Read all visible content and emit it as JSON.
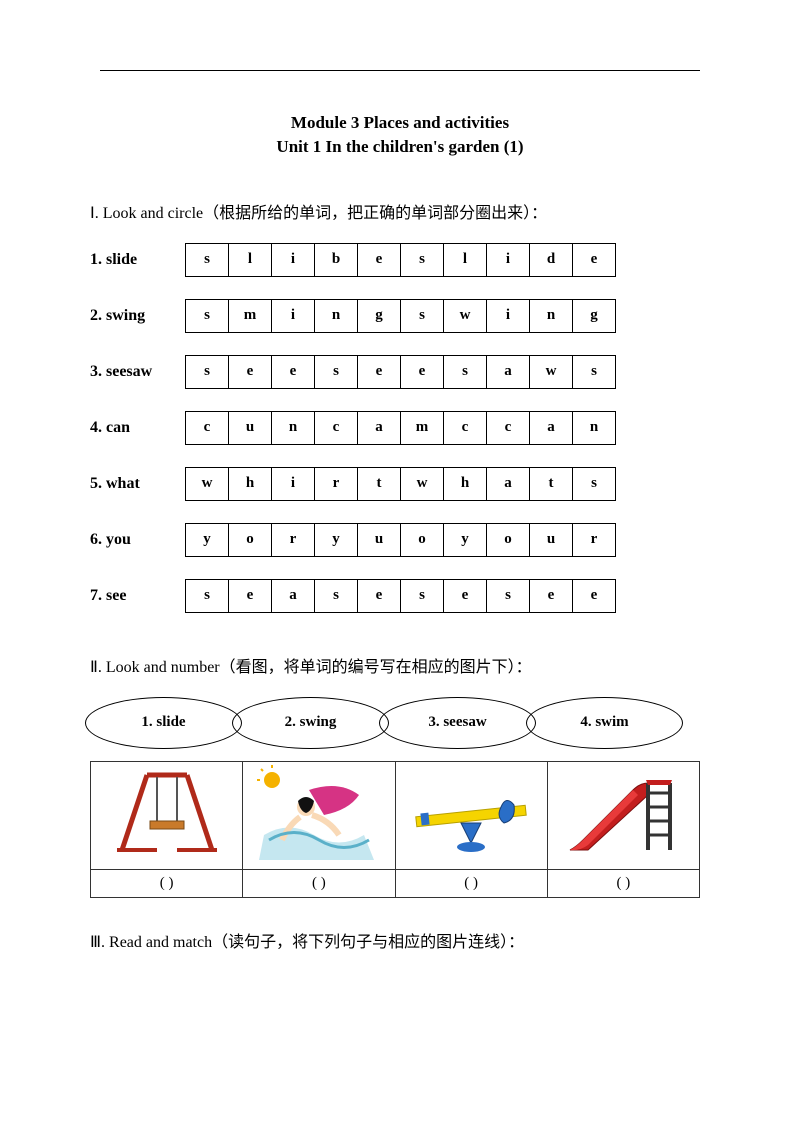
{
  "module_title_line1": "Module 3    Places and activities",
  "module_title_line2": "Unit 1 In the children's garden (1)",
  "section1": {
    "heading": "Ⅰ. Look and circle（根据所给的单词，把正确的单词部分圈出来）：",
    "rows": [
      {
        "label": "1. slide",
        "letters": [
          "s",
          "l",
          "i",
          "b",
          "e",
          "s",
          "l",
          "i",
          "d",
          "e"
        ]
      },
      {
        "label": "2. swing",
        "letters": [
          "s",
          "m",
          "i",
          "n",
          "g",
          "s",
          "w",
          "i",
          "n",
          "g"
        ]
      },
      {
        "label": "3. seesaw",
        "letters": [
          "s",
          "e",
          "e",
          "s",
          "e",
          "e",
          "s",
          "a",
          "w",
          "s"
        ]
      },
      {
        "label": "4. can",
        "letters": [
          "c",
          "u",
          "n",
          "c",
          "a",
          "m",
          "c",
          "c",
          "a",
          "n"
        ]
      },
      {
        "label": "5. what",
        "letters": [
          "w",
          "h",
          "i",
          "r",
          "t",
          "w",
          "h",
          "a",
          "t",
          "s"
        ]
      },
      {
        "label": "6. you",
        "letters": [
          "y",
          "o",
          "r",
          "y",
          "u",
          "o",
          "y",
          "o",
          "u",
          "r"
        ]
      },
      {
        "label": "7. see",
        "letters": [
          "s",
          "e",
          "a",
          "s",
          "e",
          "s",
          "e",
          "s",
          "e",
          "e"
        ]
      }
    ]
  },
  "section2": {
    "heading": "Ⅱ. Look and number（看图，将单词的编号写在相应的图片下）：",
    "ovals": [
      "1. slide",
      "2. swing",
      "3. seesaw",
      "4. swim"
    ],
    "blank_label": "(      )"
  },
  "section3": {
    "heading": "Ⅲ. Read and match（读句子，将下列句子与相应的图片连线）："
  },
  "colors": {
    "swing_frame": "#b02a1a",
    "swing_seat": "#c97a2a",
    "swim_water": "#9ed7e6",
    "swim_cape": "#d63384",
    "swim_hair": "#111",
    "swim_sun": "#f5b200",
    "seesaw_plank": "#f5d400",
    "seesaw_base": "#2a6ec7",
    "slide_red": "#c31e1e",
    "slide_dark": "#333"
  }
}
